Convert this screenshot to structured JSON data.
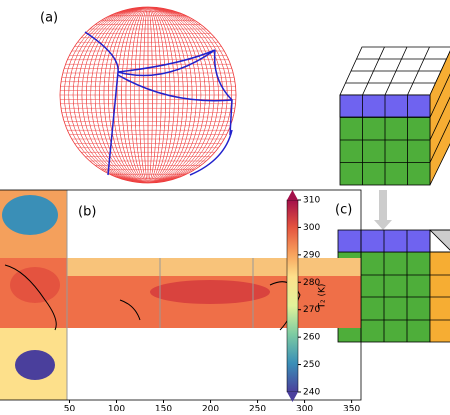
{
  "panels": {
    "a": "(a)",
    "b": "(b)",
    "c": "(c)"
  },
  "map": {
    "xlim": [
      -26,
      360
    ],
    "xticks": [
      50,
      100,
      150,
      200,
      250,
      300,
      350
    ]
  },
  "colorbar": {
    "label": "T₂ (K)",
    "ylim": [
      240,
      310
    ],
    "yticks": [
      240,
      250,
      260,
      270,
      280,
      290,
      300,
      310
    ]
  }
}
